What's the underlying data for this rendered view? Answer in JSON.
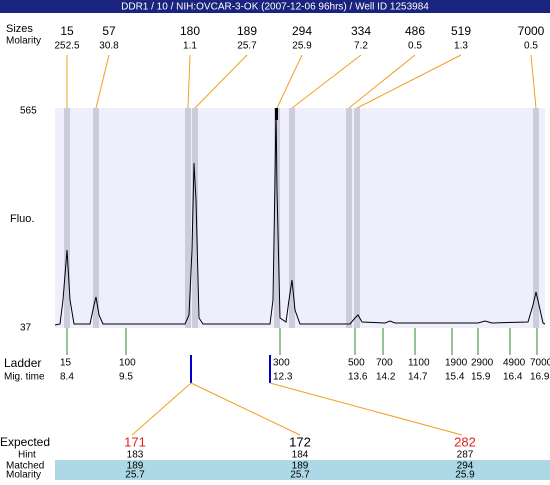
{
  "header": {
    "title": "DDR1 / 10 / NIH:OVCAR-3-OK (2007-12-06 96hrs) / Well ID 1253984"
  },
  "labels": {
    "sizes": "Sizes",
    "molarity": "Molarity",
    "fluo": "Fluo.",
    "ymax": "565",
    "ymin": "37",
    "ladder": "Ladder",
    "mig_time": "Mig. time",
    "expected": "Expected",
    "hint": "Hint",
    "matched": "Matched",
    "molarity2": "Molarity"
  },
  "peaks": [
    {
      "size": "15",
      "molarity": "252.5"
    },
    {
      "size": "57",
      "molarity": "30.8"
    },
    {
      "size": "180",
      "molarity": "1.1"
    },
    {
      "size": "189",
      "molarity": "25.7"
    },
    {
      "size": "294",
      "molarity": "25.9"
    },
    {
      "size": "334",
      "molarity": "7.2"
    },
    {
      "size": "486",
      "molarity": "0.5"
    },
    {
      "size": "519",
      "molarity": "1.3"
    },
    {
      "size": "7000",
      "molarity": "0.5"
    }
  ],
  "ladder": [
    {
      "size": "15",
      "time": "8.4"
    },
    {
      "size": "100",
      "time": "9.5"
    },
    {
      "size": "300",
      "time": "12.3"
    },
    {
      "size": "500",
      "time": "13.6"
    },
    {
      "size": "700",
      "time": "14.2"
    },
    {
      "size": "1100",
      "time": "14.7"
    },
    {
      "size": "1900",
      "time": "15.4"
    },
    {
      "size": "2900",
      "time": "15.9"
    },
    {
      "size": "4900",
      "time": "16.4"
    },
    {
      "size": "7000",
      "time": "16.9"
    }
  ],
  "expected": [
    {
      "expected": "171",
      "hint": "183",
      "matched": "189",
      "molarity": "25.7"
    },
    {
      "expected": "172",
      "hint": "184",
      "matched": "189",
      "molarity": "25.7"
    },
    {
      "expected": "282",
      "hint": "287",
      "matched": "294",
      "molarity": "25.9"
    }
  ]
}
